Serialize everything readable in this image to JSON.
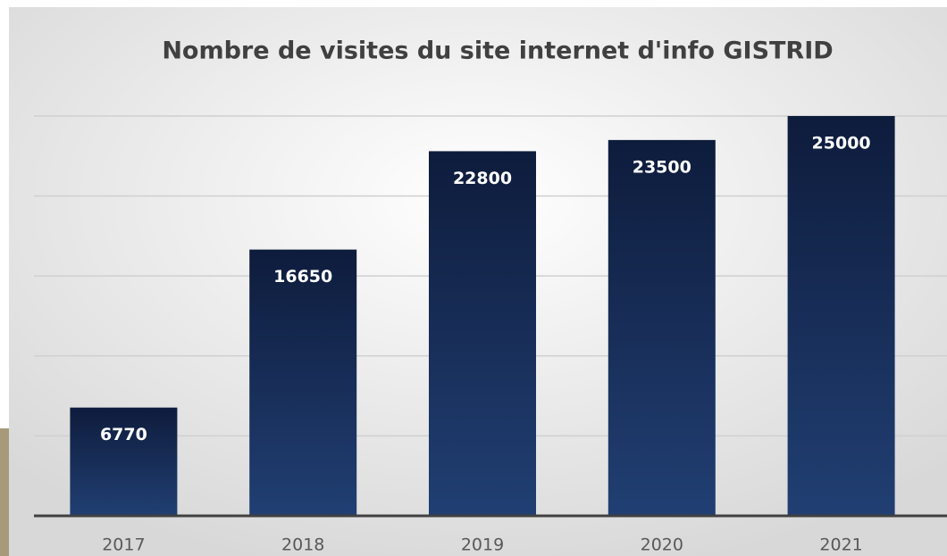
{
  "chart_data": {
    "type": "bar",
    "title": "Nombre de visites du site internet d'info GISTRID",
    "categories": [
      "2017",
      "2018",
      "2019",
      "2020",
      "2021"
    ],
    "values": [
      6770,
      16650,
      22800,
      23500,
      25000
    ],
    "ylim": [
      0,
      25000
    ],
    "gridlines": [
      5000,
      10000,
      15000,
      20000,
      25000
    ],
    "grid": true
  }
}
